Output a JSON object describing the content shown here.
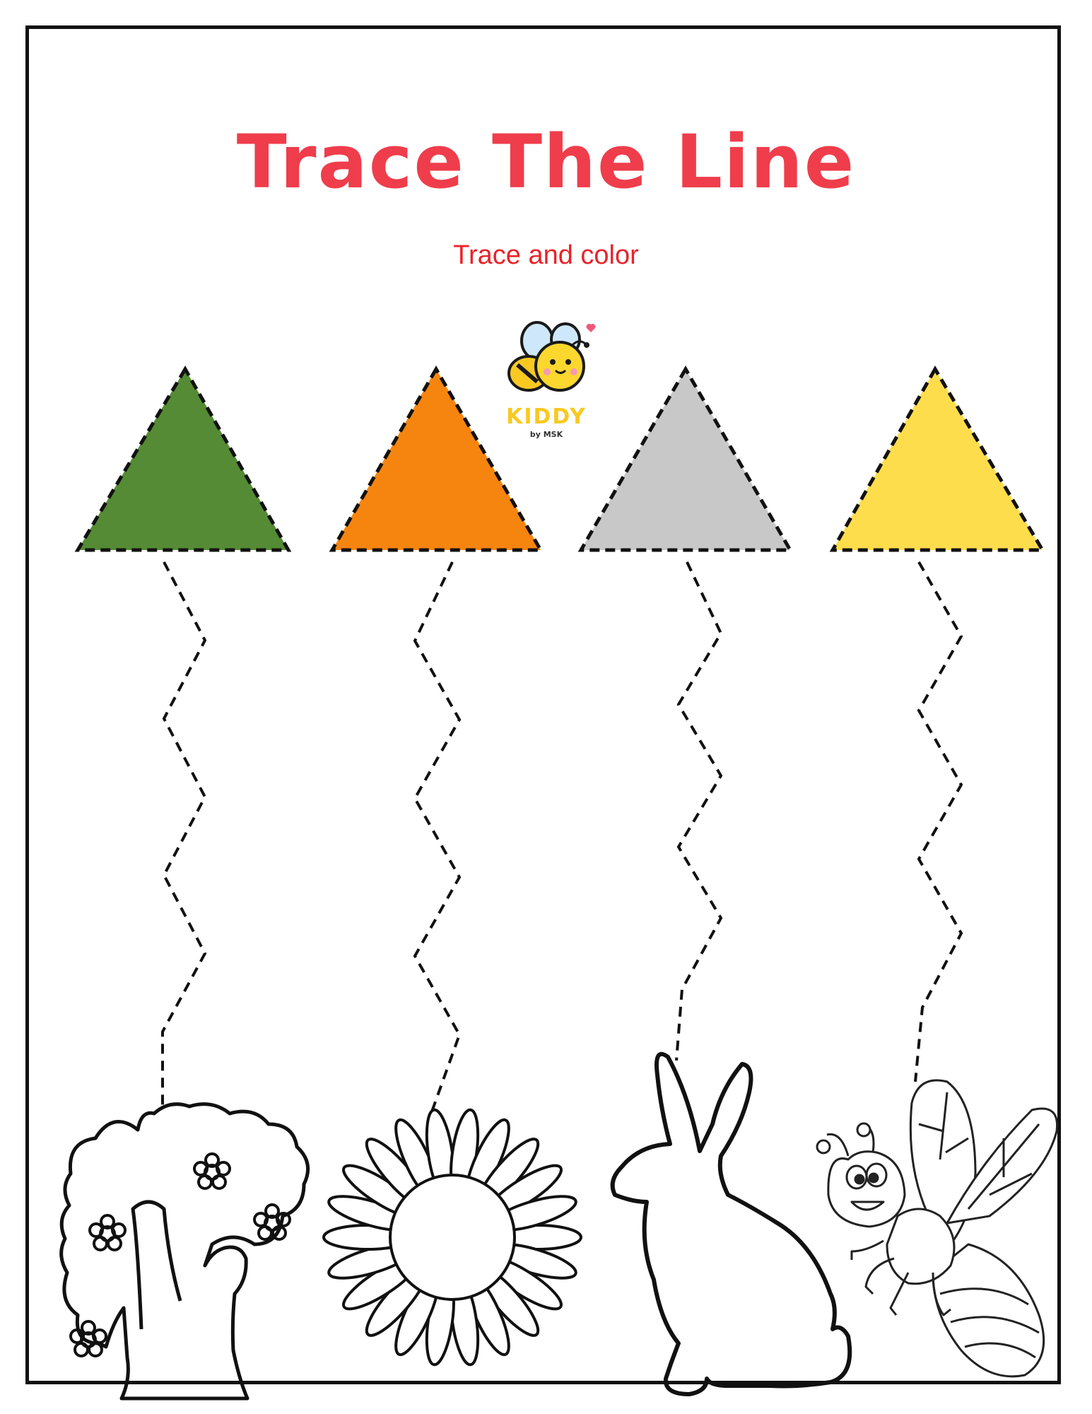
{
  "worksheet": {
    "title": "Trace The Line",
    "subtitle": "Trace and color",
    "logo": {
      "name": "KIDDY",
      "tagline": "by MSK",
      "icon": "bee-mascot-icon"
    }
  },
  "colors": {
    "title": "#ef3d4b",
    "subtitle": "#e8232a",
    "logo_text": "#f9c922",
    "line": "#111111"
  },
  "triangles": [
    {
      "fill": "#558b35",
      "target_icon": "tree-icon"
    },
    {
      "fill": "#f6850f",
      "target_icon": "sunflower-icon"
    },
    {
      "fill": "#c8c8c8",
      "target_icon": "rabbit-icon"
    },
    {
      "fill": "#fedd4d",
      "target_icon": "bee-icon"
    }
  ]
}
